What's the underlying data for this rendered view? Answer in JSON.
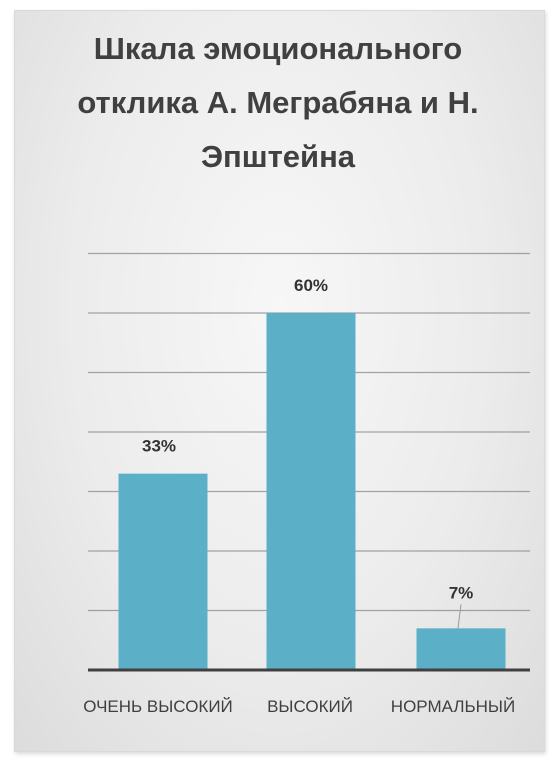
{
  "chart_data": {
    "type": "bar",
    "title": "Шкала эмоционального отклика А. Меграбяна и Н. Эпштейна",
    "categories": [
      "ОЧЕНЬ ВЫСОКИЙ",
      "ВЫСОКИЙ",
      "НОРМАЛЬНЫЙ"
    ],
    "values": [
      33,
      60,
      7
    ],
    "data_labels": [
      "33%",
      "60%",
      "7%"
    ],
    "xlabel": "",
    "ylabel": "",
    "ylim": [
      0,
      70
    ],
    "grid": true,
    "legend": "none",
    "colors": {
      "bar": "#5bafc7",
      "grid": "#888888",
      "axis": "#404040"
    }
  }
}
